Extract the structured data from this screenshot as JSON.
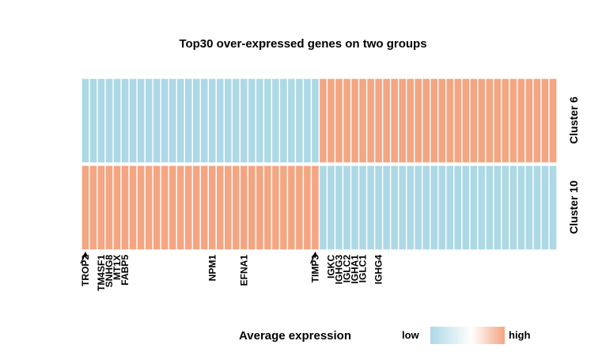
{
  "chart_data": {
    "type": "heatmap",
    "title": "Top30 over-expressed genes on two groups",
    "rows": [
      "Cluster 6",
      "Cluster 10"
    ],
    "columns_count": 60,
    "columns_description": "60 genes; first 30 over-expressed in Cluster 10, last 30 over-expressed in Cluster 6",
    "values": {
      "Cluster 6": [
        "low",
        "low",
        "low",
        "low",
        "low",
        "low",
        "low",
        "low",
        "low",
        "low",
        "low",
        "low",
        "low",
        "low",
        "low",
        "low",
        "low",
        "low",
        "low",
        "low",
        "low",
        "low",
        "low",
        "low",
        "low",
        "low",
        "low",
        "low",
        "low",
        "low",
        "high",
        "high",
        "high",
        "high",
        "high",
        "high",
        "high",
        "high",
        "high",
        "high",
        "high",
        "high",
        "high",
        "high",
        "high",
        "high",
        "high",
        "high",
        "high",
        "high",
        "high",
        "high",
        "high",
        "high",
        "high",
        "high",
        "high",
        "high",
        "high",
        "high"
      ],
      "Cluster 10": [
        "high",
        "high",
        "high",
        "high",
        "high",
        "high",
        "high",
        "high",
        "high",
        "high",
        "high",
        "high",
        "high",
        "high",
        "high",
        "high",
        "high",
        "high",
        "high",
        "high",
        "high",
        "high",
        "high",
        "high",
        "high",
        "high",
        "high",
        "high",
        "high",
        "high",
        "low",
        "low",
        "low",
        "low",
        "low",
        "low",
        "low",
        "low",
        "low",
        "low",
        "low",
        "low",
        "low",
        "low",
        "low",
        "low",
        "low",
        "low",
        "low",
        "low",
        "low",
        "low",
        "low",
        "low",
        "low",
        "low",
        "low",
        "low",
        "low",
        "low"
      ]
    },
    "gene_labels": [
      {
        "label": "TROP2",
        "column": 0,
        "arrow": true
      },
      {
        "label": "TM4SF1",
        "column": 2
      },
      {
        "label": "SNHG8",
        "column": 3
      },
      {
        "label": "MT1X",
        "column": 4
      },
      {
        "label": "FABP5",
        "column": 5
      },
      {
        "label": "NPM1",
        "column": 16
      },
      {
        "label": "EFNA1",
        "column": 20
      },
      {
        "label": "TIMP3",
        "column": 29,
        "arrow": true
      },
      {
        "label": "IGKC",
        "column": 31
      },
      {
        "label": "IGHG3",
        "column": 32
      },
      {
        "label": "IGLC2",
        "column": 33
      },
      {
        "label": "IGHA1",
        "column": 34
      },
      {
        "label": "IGLC1",
        "column": 35
      },
      {
        "label": "IGHG4",
        "column": 37
      }
    ],
    "legend": {
      "title": "Average expression",
      "low_label": "low",
      "high_label": "high"
    },
    "colors": {
      "low": "#add8e6",
      "high": "#f4a582",
      "mid": "#ffffff",
      "border": "#ffffff"
    }
  }
}
